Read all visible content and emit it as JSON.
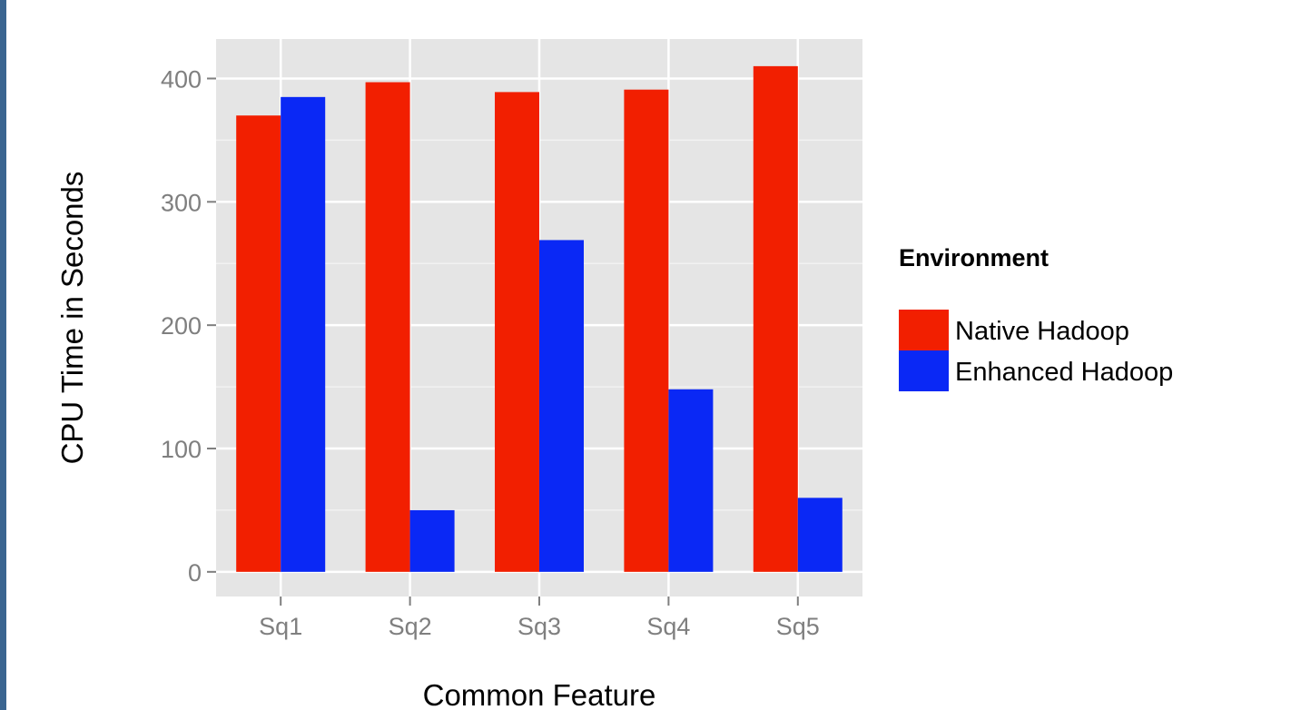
{
  "chart_data": {
    "type": "bar",
    "categories": [
      "Sq1",
      "Sq2",
      "Sq3",
      "Sq4",
      "Sq5"
    ],
    "series": [
      {
        "name": "Native Hadoop",
        "values": [
          370,
          397,
          389,
          391,
          410
        ],
        "color": "#f21f00"
      },
      {
        "name": "Enhanced Hadoop",
        "values": [
          385,
          50,
          269,
          148,
          60
        ],
        "color": "#0a28f5"
      }
    ],
    "title": "",
    "xlabel": "Common Feature",
    "ylabel": "CPU Time in Seconds",
    "ylim": [
      -20,
      432
    ],
    "yticks": [
      0,
      100,
      200,
      300,
      400
    ],
    "grid": true,
    "panel_background": "#e5e5e5",
    "legend": {
      "title": "Environment",
      "position": "right"
    }
  }
}
